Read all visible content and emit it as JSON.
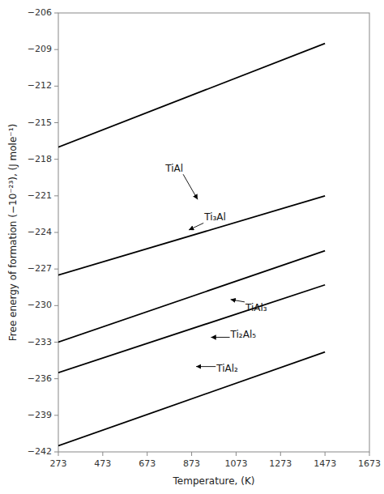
{
  "chart_data": {
    "type": "line",
    "xlabel": "Temperature, (K)",
    "ylabel": "Free energy of formation (−10⁻²³), (J mole⁻¹)",
    "color": "#000000",
    "grid": false,
    "xlim": [
      273,
      1673
    ],
    "ylim": [
      -242,
      -206
    ],
    "xticks": [
      273,
      473,
      673,
      873,
      1073,
      1273,
      1473,
      1673
    ],
    "yticks": [
      {
        "value": -206,
        "label": "−206"
      },
      {
        "value": -209,
        "label": "−209"
      },
      {
        "value": -212,
        "label": "−212"
      },
      {
        "value": -215,
        "label": "−215"
      },
      {
        "value": -218,
        "label": "−218"
      },
      {
        "value": -221,
        "label": "−221"
      },
      {
        "value": -224,
        "label": "−224"
      },
      {
        "value": -227,
        "label": "−227"
      },
      {
        "value": -230,
        "label": "−230"
      },
      {
        "value": -233,
        "label": "−233"
      },
      {
        "value": -236,
        "label": "−236"
      },
      {
        "value": -239,
        "label": "−239"
      },
      {
        "value": -242,
        "label": "−242"
      }
    ],
    "series": [
      {
        "x": [
          273,
          1473
        ],
        "values": [
          -217.0,
          -208.5
        ]
      },
      {
        "x": [
          273,
          1473
        ],
        "values": [
          -227.5,
          -221.0
        ]
      },
      {
        "x": [
          273,
          1473
        ],
        "values": [
          -233.0,
          -225.5
        ]
      },
      {
        "x": [
          273,
          1473
        ],
        "values": [
          -235.5,
          -228.3
        ]
      },
      {
        "x": [
          273,
          1473
        ],
        "values": [
          -241.5,
          -233.8
        ]
      }
    ],
    "annotations": [
      {
        "text": "TiAl",
        "xytext": [
          755,
          -218.8
        ],
        "xy": [
          900,
          -221.3
        ]
      },
      {
        "text": "Ti₃Al",
        "xytext": [
          930,
          -222.8
        ],
        "xy": [
          860,
          -223.8
        ]
      },
      {
        "text": "TiAl₃",
        "xytext": [
          1115,
          -230.2
        ],
        "xy": [
          1048,
          -229.5
        ]
      },
      {
        "text": "Ti₂Al₅",
        "xytext": [
          1048,
          -232.4
        ],
        "xy": [
          960,
          -232.6
        ]
      },
      {
        "text": "TiAl₂",
        "xytext": [
          985,
          -235.2
        ],
        "xy": [
          893,
          -235.0
        ]
      }
    ]
  }
}
